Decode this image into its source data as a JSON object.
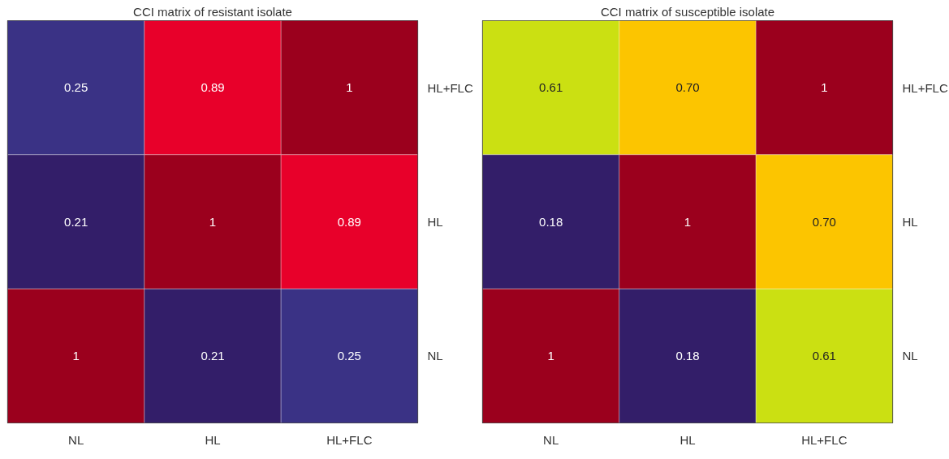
{
  "chart_data": [
    {
      "type": "heatmap",
      "title": "CCI matrix of resistant isolate",
      "categories": [
        "NL",
        "HL",
        "HL+FLC"
      ],
      "y_categories": [
        "HL+FLC",
        "HL",
        "NL"
      ],
      "cells": [
        [
          0.25,
          0.89,
          1
        ],
        [
          0.21,
          1,
          0.89
        ],
        [
          1,
          0.21,
          0.25
        ]
      ],
      "colors": [
        [
          "#3a3285",
          "#e8002a",
          "#9b001d"
        ],
        [
          "#331e69",
          "#9b001d",
          "#e8002a"
        ],
        [
          "#9b001d",
          "#331e69",
          "#3a3285"
        ]
      ],
      "data_labels": true
    },
    {
      "type": "heatmap",
      "title": "CCI matrix of susceptible isolate",
      "categories": [
        "NL",
        "HL",
        "HL+FLC"
      ],
      "y_categories": [
        "HL+FLC",
        "HL",
        "NL"
      ],
      "cells": [
        [
          0.61,
          0.7,
          1
        ],
        [
          0.18,
          1,
          0.7
        ],
        [
          1,
          0.18,
          0.61
        ]
      ],
      "cell_labels": [
        [
          "0.61",
          "0.70",
          "1"
        ],
        [
          "0.18",
          "1",
          "0.70"
        ],
        [
          "1",
          "0.18",
          "0.61"
        ]
      ],
      "colors": [
        [
          "#cbe012",
          "#fcc500",
          "#9b001d"
        ],
        [
          "#331e69",
          "#9b001d",
          "#fcc500"
        ],
        [
          "#9b001d",
          "#331e69",
          "#cbe012"
        ]
      ],
      "data_labels": true
    }
  ]
}
